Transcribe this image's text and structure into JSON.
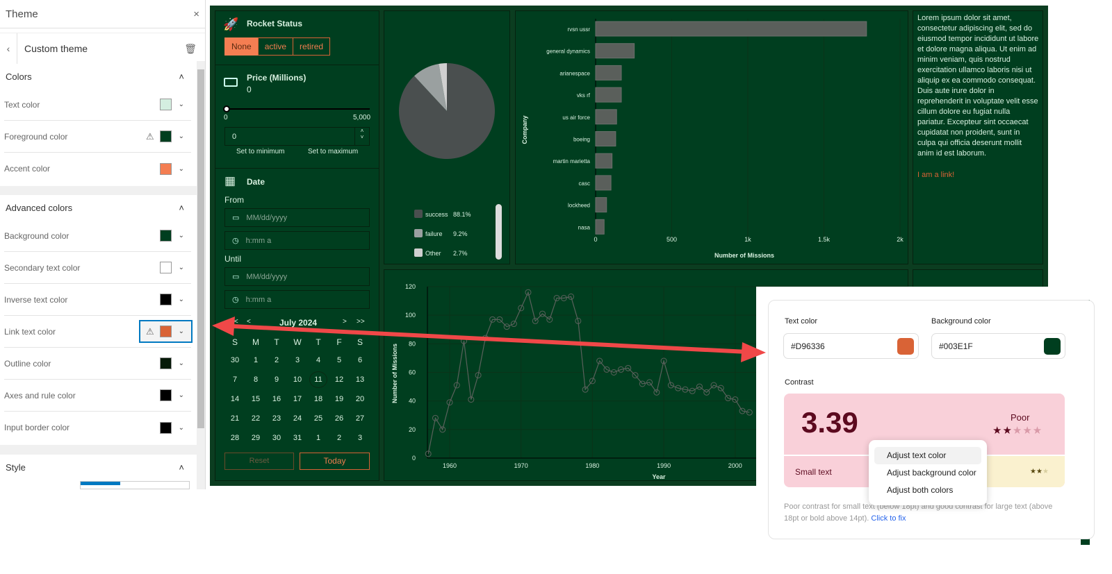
{
  "theme_panel": {
    "title": "Theme",
    "close_icon": "close-icon",
    "subtitle": "Custom theme",
    "back_icon": "chevron-left-icon",
    "delete_icon": "trash-icon",
    "colors_section": {
      "title": "Colors",
      "items": [
        {
          "label": "Text color",
          "color": "#d4eee0",
          "warning": false
        },
        {
          "label": "Foreground color",
          "color": "#003e1f",
          "warning": true
        },
        {
          "label": "Accent color",
          "color": "#f47e52",
          "warning": false
        }
      ]
    },
    "advanced_section": {
      "title": "Advanced colors",
      "items": [
        {
          "label": "Background color",
          "color": "#003e1f",
          "warning": false
        },
        {
          "label": "Secondary text color",
          "color": "#ffffff",
          "warning": false
        },
        {
          "label": "Inverse text color",
          "color": "#000000",
          "warning": false
        },
        {
          "label": "Link text color",
          "color": "#d96336",
          "warning": true,
          "focused": true
        },
        {
          "label": "Outline color",
          "color": "#061a08",
          "warning": false
        },
        {
          "label": "Axes and rule color",
          "color": "#000000",
          "warning": false
        },
        {
          "label": "Input border color",
          "color": "#000000",
          "warning": false
        }
      ]
    },
    "style_section": {
      "title": "Style"
    }
  },
  "filters": {
    "rocket_status": {
      "title": "Rocket Status",
      "options": [
        "None",
        "active",
        "retired"
      ],
      "selected": "None"
    },
    "price": {
      "title": "Price (Millions)",
      "value": "0",
      "min_label": "0",
      "max_label": "5,000",
      "slider_fraction": 0,
      "input_value": "0",
      "set_min": "Set to minimum",
      "set_max": "Set to maximum"
    },
    "date": {
      "title": "Date",
      "from_label": "From",
      "until_label": "Until",
      "date_placeholder": "MM/dd/yyyy",
      "time_placeholder": "h:mm a",
      "calendar": {
        "month": "July 2024",
        "prev_year": "<<",
        "prev": "<",
        "next": ">",
        "next_year": ">>",
        "weekdays": [
          "S",
          "M",
          "T",
          "W",
          "T",
          "F",
          "S"
        ],
        "days": [
          "30",
          "1",
          "2",
          "3",
          "4",
          "5",
          "6",
          "7",
          "8",
          "9",
          "10",
          "11",
          "12",
          "13",
          "14",
          "15",
          "16",
          "17",
          "18",
          "19",
          "20",
          "21",
          "22",
          "23",
          "24",
          "25",
          "26",
          "27",
          "28",
          "29",
          "30",
          "31",
          "1",
          "2",
          "3"
        ],
        "today": "11"
      },
      "reset": "Reset",
      "today_btn": "Today"
    }
  },
  "text_panel": {
    "body": "Lorem ipsum dolor sit amet, consectetur adipiscing elit, sed do eiusmod tempor incididunt ut labore et dolore magna aliqua. Ut enim ad minim veniam, quis nostrud exercitation ullamco laboris nisi ut aliquip ex ea commodo consequat. Duis aute irure dolor in reprehenderit in voluptate velit esse cillum dolore eu fugiat nulla pariatur. Excepteur sint occaecat cupidatat non proident, sunt in culpa qui officia deserunt mollit anim id est laborum.",
    "link": "I am a link!",
    "link_color": "#d96336"
  },
  "chart_data": [
    {
      "type": "pie",
      "labels": [
        "success",
        "failure",
        "Other"
      ],
      "values": [
        88.1,
        9.2,
        2.7
      ],
      "value_labels": [
        "88.1%",
        "9.2%",
        "2.7%"
      ],
      "colors": [
        "#4a4f4f",
        "#9aa0a0",
        "#d0d0d0"
      ],
      "legend": "bottom"
    },
    {
      "type": "bar",
      "orientation": "horizontal",
      "categories": [
        "rvsn ussr",
        "general dynamics",
        "arianespace",
        "vks rf",
        "us air force",
        "boeing",
        "martin marietta",
        "casc",
        "lockheed",
        "nasa"
      ],
      "values": [
        1780,
        254,
        169,
        169,
        138,
        132,
        108,
        101,
        72,
        56
      ],
      "xlabel": "Number of Missions",
      "ylabel": "Company",
      "xlim": [
        0,
        2000
      ],
      "xticks": [
        "0",
        "500",
        "1k",
        "1.5k",
        "2k"
      ],
      "grid": true
    },
    {
      "type": "line",
      "xlabel": "Year",
      "ylabel": "Number of Missions",
      "ylim": [
        0,
        120
      ],
      "yticks": [
        "0",
        "20",
        "40",
        "60",
        "80",
        "100",
        "120"
      ],
      "xticks": [
        "1960",
        "1970",
        "1980",
        "1990",
        "2000"
      ],
      "x": [
        1957,
        1958,
        1959,
        1960,
        1961,
        1962,
        1963,
        1964,
        1965,
        1966,
        1967,
        1968,
        1969,
        1970,
        1971,
        1972,
        1973,
        1974,
        1975,
        1976,
        1977,
        1978,
        1979,
        1980,
        1981,
        1982,
        1983,
        1984,
        1985,
        1986,
        1987,
        1988,
        1989,
        1990,
        1991,
        1992,
        1993,
        1994,
        1995,
        1996,
        1997,
        1998,
        1999,
        2000,
        2001,
        2002
      ],
      "y": [
        3,
        28,
        20,
        39,
        51,
        82,
        41,
        58,
        84,
        97,
        97,
        92,
        94,
        105,
        116,
        96,
        101,
        97,
        112,
        112,
        113,
        96,
        48,
        54,
        68,
        62,
        60,
        62,
        63,
        58,
        52,
        53,
        46,
        68,
        51,
        49,
        48,
        47,
        50,
        46,
        51,
        49,
        42,
        41,
        33,
        32
      ]
    }
  ],
  "contrast_popup": {
    "text_color_label": "Text color",
    "text_color": "#D96336",
    "bg_color_label": "Background color",
    "bg_color": "#003E1F",
    "contrast_label": "Contrast",
    "ratio": "3.39",
    "rating": "Poor",
    "rating_stars": 2,
    "small_text_label": "Small text",
    "small_text_stars": 2,
    "menu": [
      "Adjust text color",
      "Adjust background color",
      "Adjust both colors"
    ],
    "note": "Poor contrast for small text (below 18pt) and good contrast for large text (above 18pt or bold above 14pt).",
    "fix_link": "Click to fix"
  }
}
